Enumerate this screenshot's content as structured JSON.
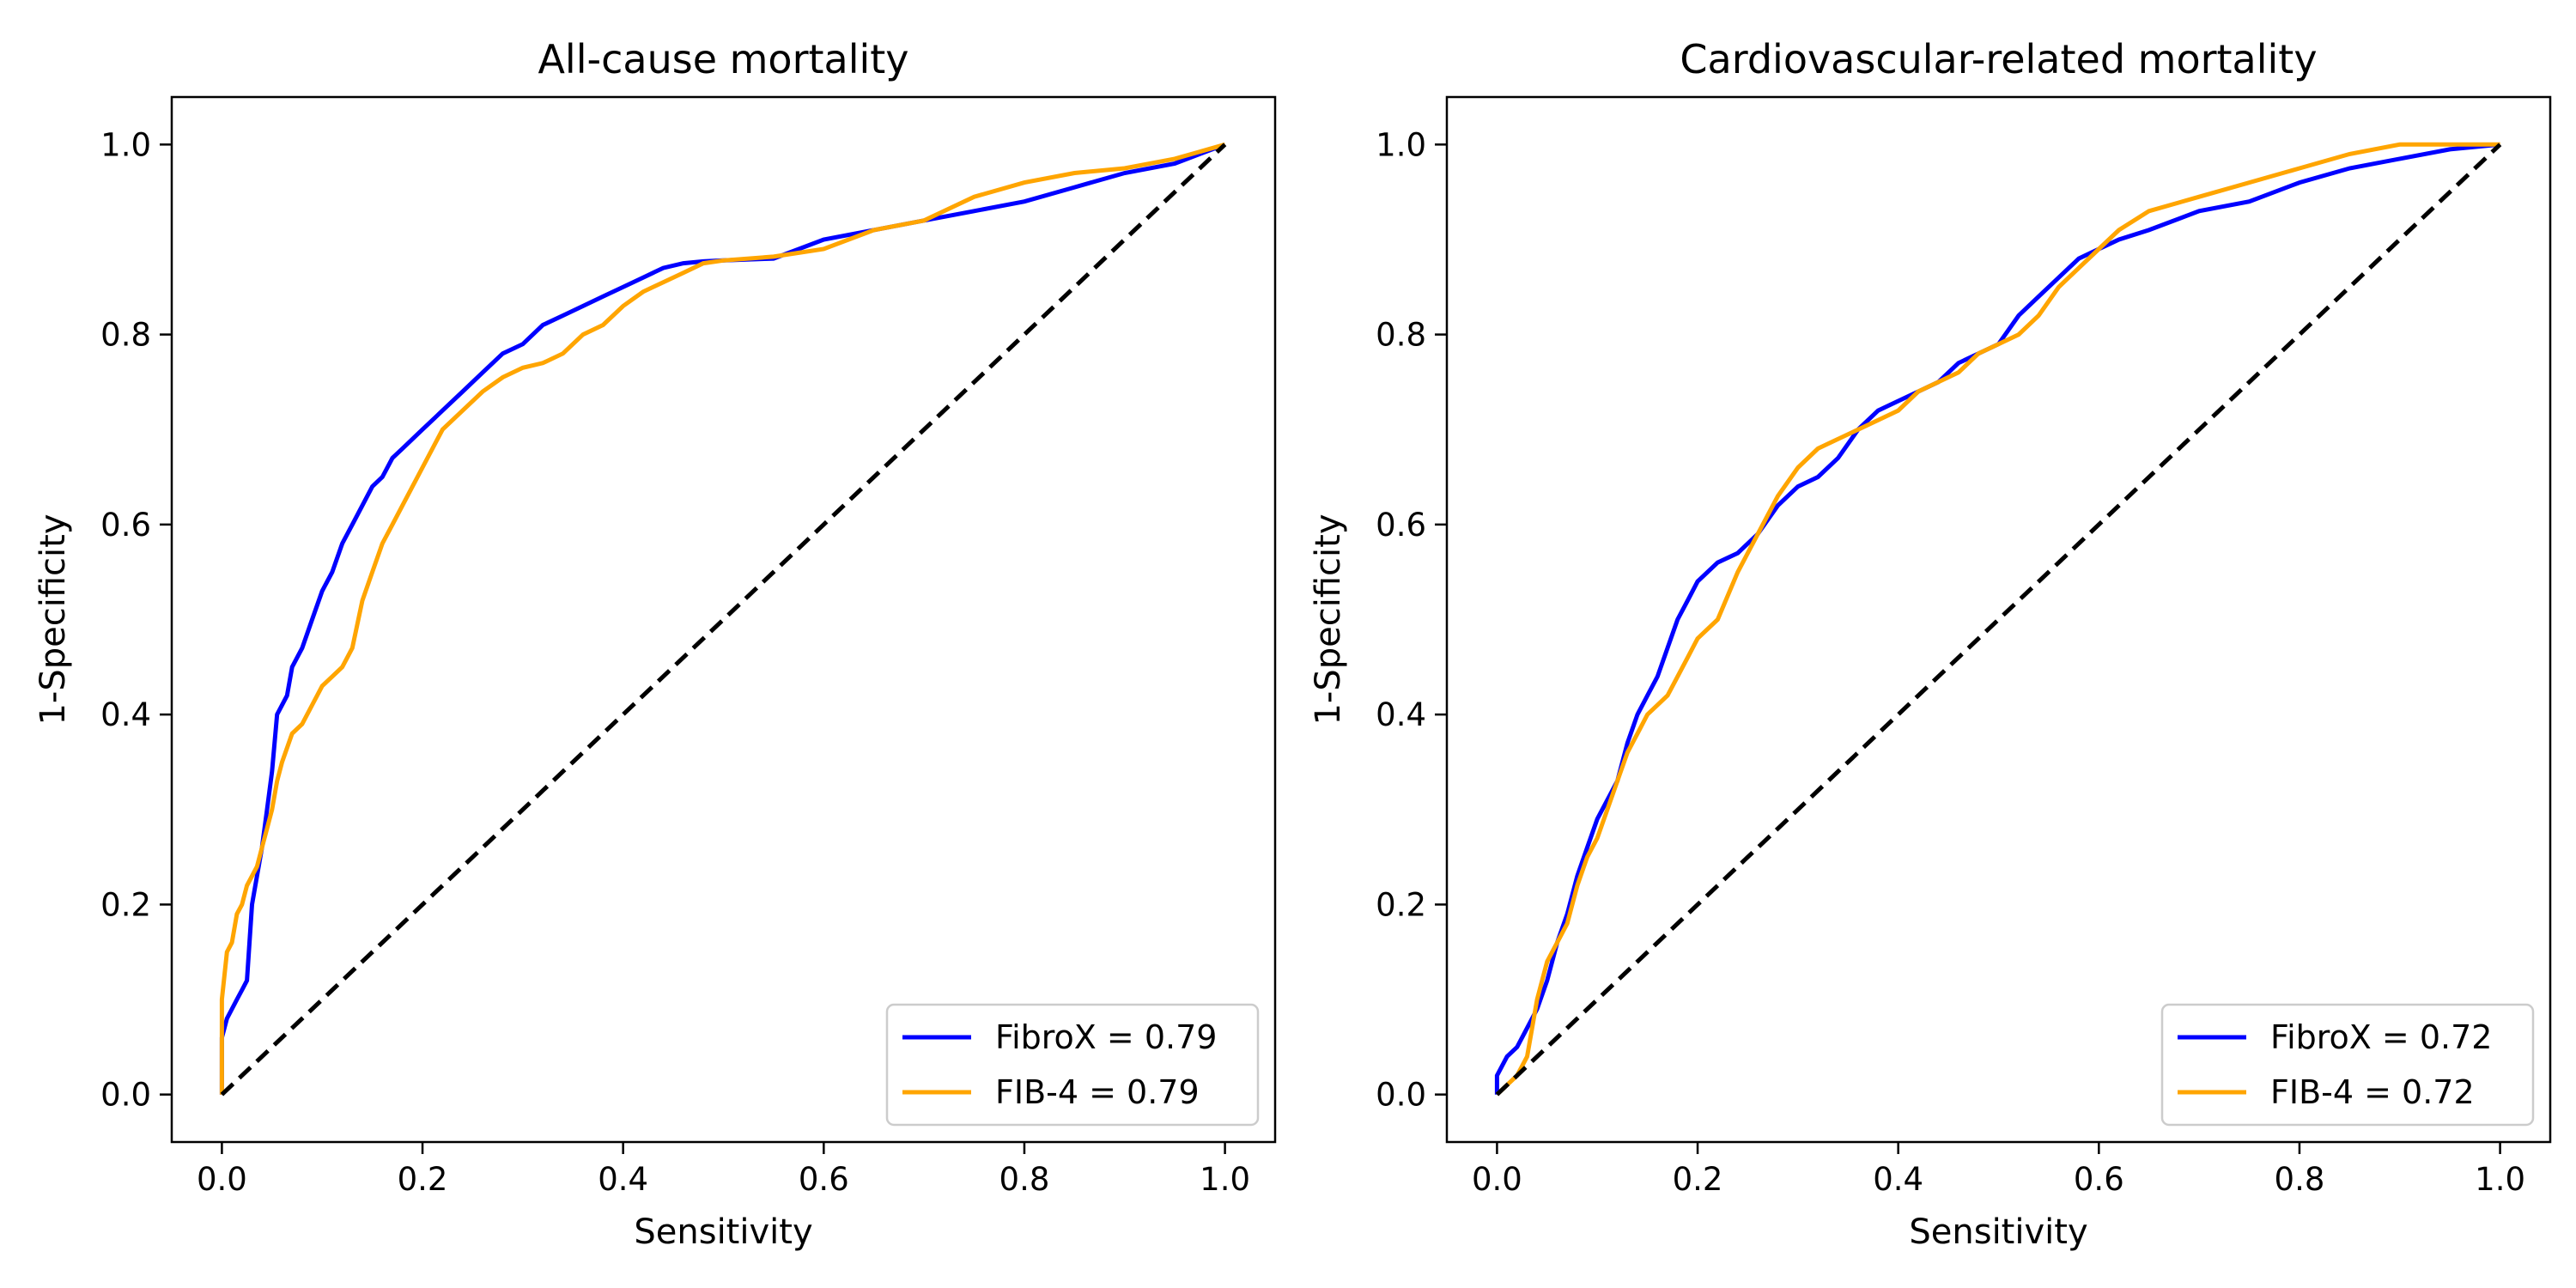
{
  "colors": {
    "fibrox": "#0000ff",
    "fib4": "#ffa500",
    "reference": "#000000"
  },
  "chart_data": [
    {
      "type": "line",
      "title": "All-cause mortality",
      "xlabel": "Sensitivity",
      "ylabel": "1-Specificity",
      "xlim": [
        -0.05,
        1.05
      ],
      "ylim": [
        -0.05,
        1.05
      ],
      "xticks": [
        "0.0",
        "0.2",
        "0.4",
        "0.6",
        "0.8",
        "1.0"
      ],
      "yticks": [
        "0.0",
        "0.2",
        "0.4",
        "0.6",
        "0.8",
        "1.0"
      ],
      "grid": false,
      "legend_position": "lower-right",
      "series": [
        {
          "name": "FibroX = 0.79",
          "x": [
            0,
            0,
            0.005,
            0.01,
            0.015,
            0.02,
            0.025,
            0.03,
            0.035,
            0.04,
            0.045,
            0.05,
            0.055,
            0.06,
            0.065,
            0.07,
            0.08,
            0.09,
            0.1,
            0.11,
            0.12,
            0.13,
            0.14,
            0.15,
            0.16,
            0.17,
            0.18,
            0.2,
            0.22,
            0.24,
            0.26,
            0.28,
            0.3,
            0.32,
            0.34,
            0.36,
            0.38,
            0.4,
            0.42,
            0.44,
            0.46,
            0.48,
            0.5,
            0.55,
            0.6,
            0.65,
            0.7,
            0.75,
            0.8,
            0.85,
            0.9,
            0.95,
            1.0
          ],
          "y": [
            0,
            0.06,
            0.08,
            0.09,
            0.1,
            0.11,
            0.12,
            0.2,
            0.23,
            0.26,
            0.3,
            0.34,
            0.4,
            0.41,
            0.42,
            0.45,
            0.47,
            0.5,
            0.53,
            0.55,
            0.58,
            0.6,
            0.62,
            0.64,
            0.65,
            0.67,
            0.68,
            0.7,
            0.72,
            0.74,
            0.76,
            0.78,
            0.79,
            0.81,
            0.82,
            0.83,
            0.84,
            0.85,
            0.86,
            0.87,
            0.875,
            0.877,
            0.878,
            0.88,
            0.9,
            0.91,
            0.92,
            0.93,
            0.94,
            0.955,
            0.97,
            0.98,
            1.0
          ]
        },
        {
          "name": "FIB-4 = 0.79",
          "x": [
            0,
            0,
            0.005,
            0.01,
            0.015,
            0.02,
            0.025,
            0.03,
            0.035,
            0.04,
            0.045,
            0.05,
            0.055,
            0.06,
            0.07,
            0.08,
            0.09,
            0.1,
            0.11,
            0.12,
            0.13,
            0.14,
            0.15,
            0.16,
            0.17,
            0.18,
            0.2,
            0.22,
            0.24,
            0.26,
            0.28,
            0.3,
            0.32,
            0.34,
            0.36,
            0.38,
            0.4,
            0.42,
            0.44,
            0.46,
            0.48,
            0.5,
            0.55,
            0.6,
            0.65,
            0.7,
            0.75,
            0.8,
            0.85,
            0.9,
            0.95,
            1.0
          ],
          "y": [
            0,
            0.1,
            0.15,
            0.16,
            0.19,
            0.2,
            0.22,
            0.23,
            0.24,
            0.26,
            0.28,
            0.3,
            0.33,
            0.35,
            0.38,
            0.39,
            0.41,
            0.43,
            0.44,
            0.45,
            0.47,
            0.52,
            0.55,
            0.58,
            0.6,
            0.62,
            0.66,
            0.7,
            0.72,
            0.74,
            0.755,
            0.765,
            0.77,
            0.78,
            0.8,
            0.81,
            0.83,
            0.845,
            0.855,
            0.865,
            0.875,
            0.878,
            0.882,
            0.89,
            0.91,
            0.92,
            0.945,
            0.96,
            0.97,
            0.975,
            0.985,
            1.0
          ]
        },
        {
          "name": "",
          "style": "dashed",
          "x": [
            0,
            1
          ],
          "y": [
            0,
            1
          ]
        }
      ]
    },
    {
      "type": "line",
      "title": "Cardiovascular-related mortality",
      "xlabel": "Sensitivity",
      "ylabel": "1-Specificity",
      "xlim": [
        -0.05,
        1.05
      ],
      "ylim": [
        -0.05,
        1.05
      ],
      "xticks": [
        "0.0",
        "0.2",
        "0.4",
        "0.6",
        "0.8",
        "1.0"
      ],
      "yticks": [
        "0.0",
        "0.2",
        "0.4",
        "0.6",
        "0.8",
        "1.0"
      ],
      "grid": false,
      "legend_position": "lower-right",
      "series": [
        {
          "name": "FibroX = 0.72",
          "x": [
            0,
            0,
            0.01,
            0.02,
            0.03,
            0.04,
            0.05,
            0.06,
            0.07,
            0.08,
            0.09,
            0.1,
            0.11,
            0.12,
            0.13,
            0.14,
            0.15,
            0.16,
            0.17,
            0.18,
            0.19,
            0.2,
            0.22,
            0.24,
            0.26,
            0.28,
            0.3,
            0.32,
            0.34,
            0.36,
            0.38,
            0.4,
            0.42,
            0.44,
            0.46,
            0.48,
            0.5,
            0.52,
            0.54,
            0.56,
            0.58,
            0.6,
            0.62,
            0.65,
            0.7,
            0.75,
            0.8,
            0.85,
            0.9,
            0.95,
            1.0
          ],
          "y": [
            0,
            0.02,
            0.04,
            0.05,
            0.07,
            0.09,
            0.12,
            0.16,
            0.19,
            0.23,
            0.26,
            0.29,
            0.31,
            0.33,
            0.37,
            0.4,
            0.42,
            0.44,
            0.47,
            0.5,
            0.52,
            0.54,
            0.56,
            0.57,
            0.59,
            0.62,
            0.64,
            0.65,
            0.67,
            0.7,
            0.72,
            0.73,
            0.74,
            0.75,
            0.77,
            0.78,
            0.79,
            0.82,
            0.84,
            0.86,
            0.88,
            0.89,
            0.9,
            0.91,
            0.93,
            0.94,
            0.96,
            0.975,
            0.985,
            0.995,
            1.0
          ]
        },
        {
          "name": "FIB-4 = 0.72",
          "x": [
            0,
            0,
            0.01,
            0.02,
            0.03,
            0.04,
            0.05,
            0.06,
            0.07,
            0.08,
            0.09,
            0.1,
            0.11,
            0.12,
            0.13,
            0.14,
            0.15,
            0.16,
            0.17,
            0.18,
            0.19,
            0.2,
            0.22,
            0.24,
            0.26,
            0.28,
            0.3,
            0.32,
            0.34,
            0.36,
            0.38,
            0.4,
            0.42,
            0.44,
            0.46,
            0.48,
            0.5,
            0.52,
            0.54,
            0.56,
            0.58,
            0.6,
            0.62,
            0.65,
            0.7,
            0.75,
            0.8,
            0.85,
            0.9,
            0.95,
            1.0
          ],
          "y": [
            0,
            0.0,
            0.01,
            0.02,
            0.04,
            0.1,
            0.14,
            0.16,
            0.18,
            0.22,
            0.25,
            0.27,
            0.3,
            0.33,
            0.36,
            0.38,
            0.4,
            0.41,
            0.42,
            0.44,
            0.46,
            0.48,
            0.5,
            0.55,
            0.59,
            0.63,
            0.66,
            0.68,
            0.69,
            0.7,
            0.71,
            0.72,
            0.74,
            0.75,
            0.76,
            0.78,
            0.79,
            0.8,
            0.82,
            0.85,
            0.87,
            0.89,
            0.91,
            0.93,
            0.945,
            0.96,
            0.975,
            0.99,
            1.0,
            1.0,
            1.0
          ]
        },
        {
          "name": "",
          "style": "dashed",
          "x": [
            0,
            1
          ],
          "y": [
            0,
            1
          ]
        }
      ]
    }
  ]
}
